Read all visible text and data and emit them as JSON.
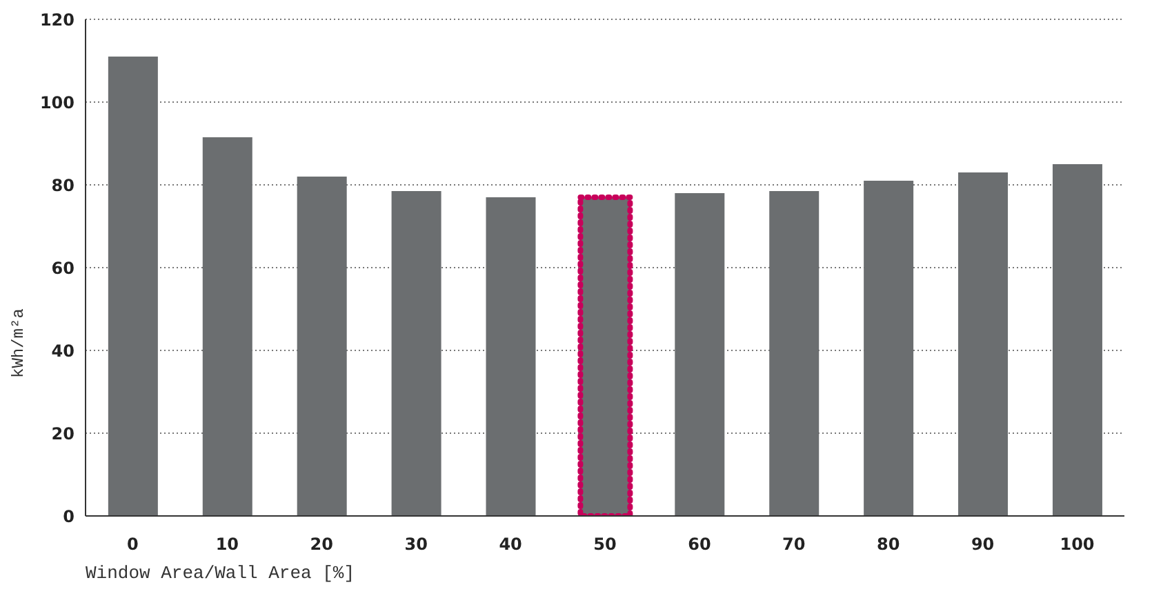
{
  "chart_data": {
    "type": "bar",
    "xlabel": "Window Area/Wall Area [%]",
    "ylabel": "kWh/m²a",
    "categories": [
      "0",
      "10",
      "20",
      "30",
      "40",
      "50",
      "60",
      "70",
      "80",
      "90",
      "100"
    ],
    "values": [
      111,
      91.5,
      82,
      78.5,
      77,
      77,
      78,
      78.5,
      81,
      83,
      85
    ],
    "color": "#6b6e70",
    "ylim": [
      0,
      120
    ],
    "yticks": [
      0,
      20,
      40,
      60,
      80,
      100,
      120
    ],
    "grid": "y"
  }
}
